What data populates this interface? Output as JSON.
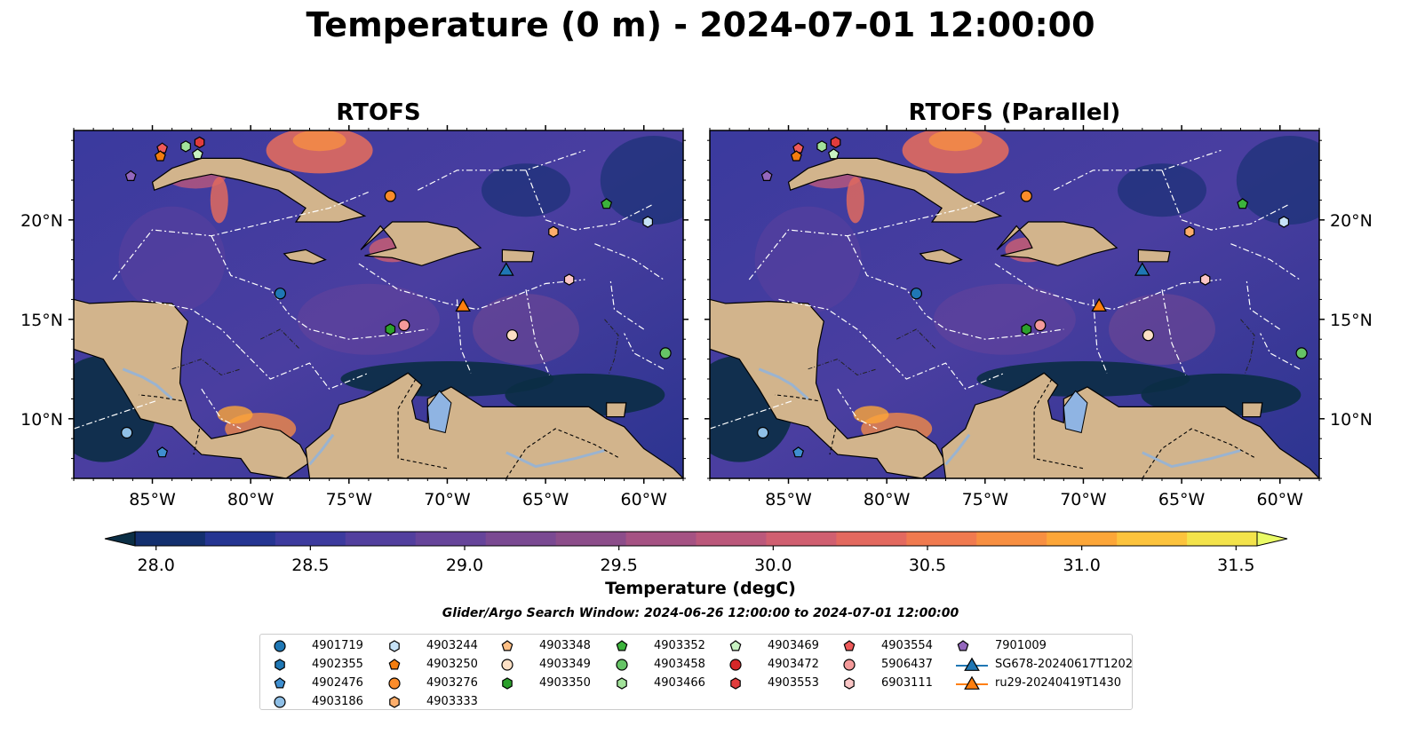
{
  "title": "Temperature (0 m) - 2024-07-01 12:00:00",
  "panels": [
    {
      "title": "RTOFS"
    },
    {
      "title": "RTOFS (Parallel)"
    }
  ],
  "colorbar": {
    "label": "Temperature (degC)",
    "min": 28.0,
    "max": 31.5,
    "ticks": [
      "28.0",
      "28.5",
      "29.0",
      "29.5",
      "30.0",
      "30.5",
      "31.0",
      "31.5"
    ],
    "colors": [
      "#0b2e45",
      "#132f6e",
      "#253592",
      "#3c3a9e",
      "#523f9e",
      "#66449a",
      "#7a4992",
      "#8c4d8a",
      "#a55283",
      "#bb587b",
      "#d05f70",
      "#e3695f",
      "#f07a4f",
      "#f78f41",
      "#fca638",
      "#fcc33d",
      "#f3e34b",
      "#eafb66"
    ]
  },
  "search_window": "Glider/Argo Search Window: 2024-06-26 12:00:00 to 2024-07-01 12:00:00",
  "chart_data": {
    "type": "heatmap",
    "map_extent": {
      "lon": [
        -89,
        -58
      ],
      "lat": [
        7,
        24.5
      ]
    },
    "x_ticks": [
      "85°W",
      "80°W",
      "75°W",
      "70°W",
      "65°W",
      "60°W"
    ],
    "x_tick_values": [
      -85,
      -80,
      -75,
      -70,
      -65,
      -60
    ],
    "y_ticks": [
      "10°N",
      "15°N",
      "20°N"
    ],
    "y_tick_values": [
      10,
      15,
      20
    ],
    "markers": [
      {
        "id": "4901719",
        "lon": -78.5,
        "lat": 16.3
      },
      {
        "id": "4903186",
        "lon": -86.3,
        "lat": 9.3
      },
      {
        "id": "4902476",
        "lon": -84.5,
        "lat": 8.3
      },
      {
        "id": "4903244",
        "lon": -59.8,
        "lat": 19.9
      },
      {
        "id": "4903276",
        "lon": -72.9,
        "lat": 21.2
      },
      {
        "id": "4903333",
        "lon": -64.6,
        "lat": 19.4
      },
      {
        "id": "4903349",
        "lon": -66.7,
        "lat": 14.2
      },
      {
        "id": "4903350",
        "lon": -72.9,
        "lat": 14.5
      },
      {
        "id": "4903352",
        "lon": -61.9,
        "lat": 20.8
      },
      {
        "id": "4903458",
        "lon": -58.9,
        "lat": 13.3
      },
      {
        "id": "5906437",
        "lon": -72.2,
        "lat": 14.7
      },
      {
        "id": "6903111",
        "lon": -63.8,
        "lat": 17.0
      },
      {
        "id": "7901009",
        "lon": -86.1,
        "lat": 22.2
      },
      {
        "id": "4903553",
        "lon": -82.6,
        "lat": 23.9
      },
      {
        "id": "4903554",
        "lon": -84.5,
        "lat": 23.6
      },
      {
        "id": "4903466",
        "lon": -83.3,
        "lat": 23.7
      },
      {
        "id": "4903469",
        "lon": -82.7,
        "lat": 23.3
      },
      {
        "id": "4903250",
        "lon": -84.6,
        "lat": 23.2
      },
      {
        "id": "SG678-20240617T1202",
        "lon": -67.0,
        "lat": 17.5
      },
      {
        "id": "ru29-20240419T1430",
        "lon": -69.2,
        "lat": 15.7
      }
    ]
  },
  "legend": {
    "columns": [
      [
        {
          "label": "4901719",
          "shape": "circle",
          "color": "#1f77b4"
        },
        {
          "label": "4902355",
          "shape": "hexagon",
          "color": "#1f77b4"
        },
        {
          "label": "4902476",
          "shape": "pentagon",
          "color": "#3f8fd0"
        },
        {
          "label": "4903186",
          "shape": "circle",
          "color": "#8fbfe6"
        }
      ],
      [
        {
          "label": "4903244",
          "shape": "hexagon",
          "color": "#c6e2f7"
        },
        {
          "label": "4903250",
          "shape": "pentagon",
          "color": "#f47d0e"
        },
        {
          "label": "4903276",
          "shape": "circle",
          "color": "#fb8c2a"
        },
        {
          "label": "4903333",
          "shape": "hexagon",
          "color": "#fdae6b"
        }
      ],
      [
        {
          "label": "4903348",
          "shape": "pentagon",
          "color": "#fdbf85"
        },
        {
          "label": "4903349",
          "shape": "circle",
          "color": "#fde0c5"
        },
        {
          "label": "4903350",
          "shape": "hexagon",
          "color": "#2ca02c"
        }
      ],
      [
        {
          "label": "4903352",
          "shape": "pentagon",
          "color": "#3cb33c"
        },
        {
          "label": "4903458",
          "shape": "circle",
          "color": "#66c466"
        },
        {
          "label": "4903466",
          "shape": "hexagon",
          "color": "#a2e29a"
        }
      ],
      [
        {
          "label": "4903469",
          "shape": "pentagon",
          "color": "#c8f2c2"
        },
        {
          "label": "4903472",
          "shape": "circle",
          "color": "#d62728"
        },
        {
          "label": "4903553",
          "shape": "hexagon",
          "color": "#e03c3c"
        }
      ],
      [
        {
          "label": "4903554",
          "shape": "pentagon",
          "color": "#ef5a5a"
        },
        {
          "label": "5906437",
          "shape": "circle",
          "color": "#f49a9a"
        },
        {
          "label": "6903111",
          "shape": "hexagon",
          "color": "#fbc6c6"
        }
      ],
      [
        {
          "label": "7901009",
          "shape": "pentagon",
          "color": "#9467bd"
        },
        {
          "label": "SG678-20240617T1202",
          "shape": "triangle",
          "color": "#1f77b4"
        },
        {
          "label": "ru29-20240419T1430",
          "shape": "triangle",
          "color": "#ff7f0e"
        }
      ]
    ]
  }
}
